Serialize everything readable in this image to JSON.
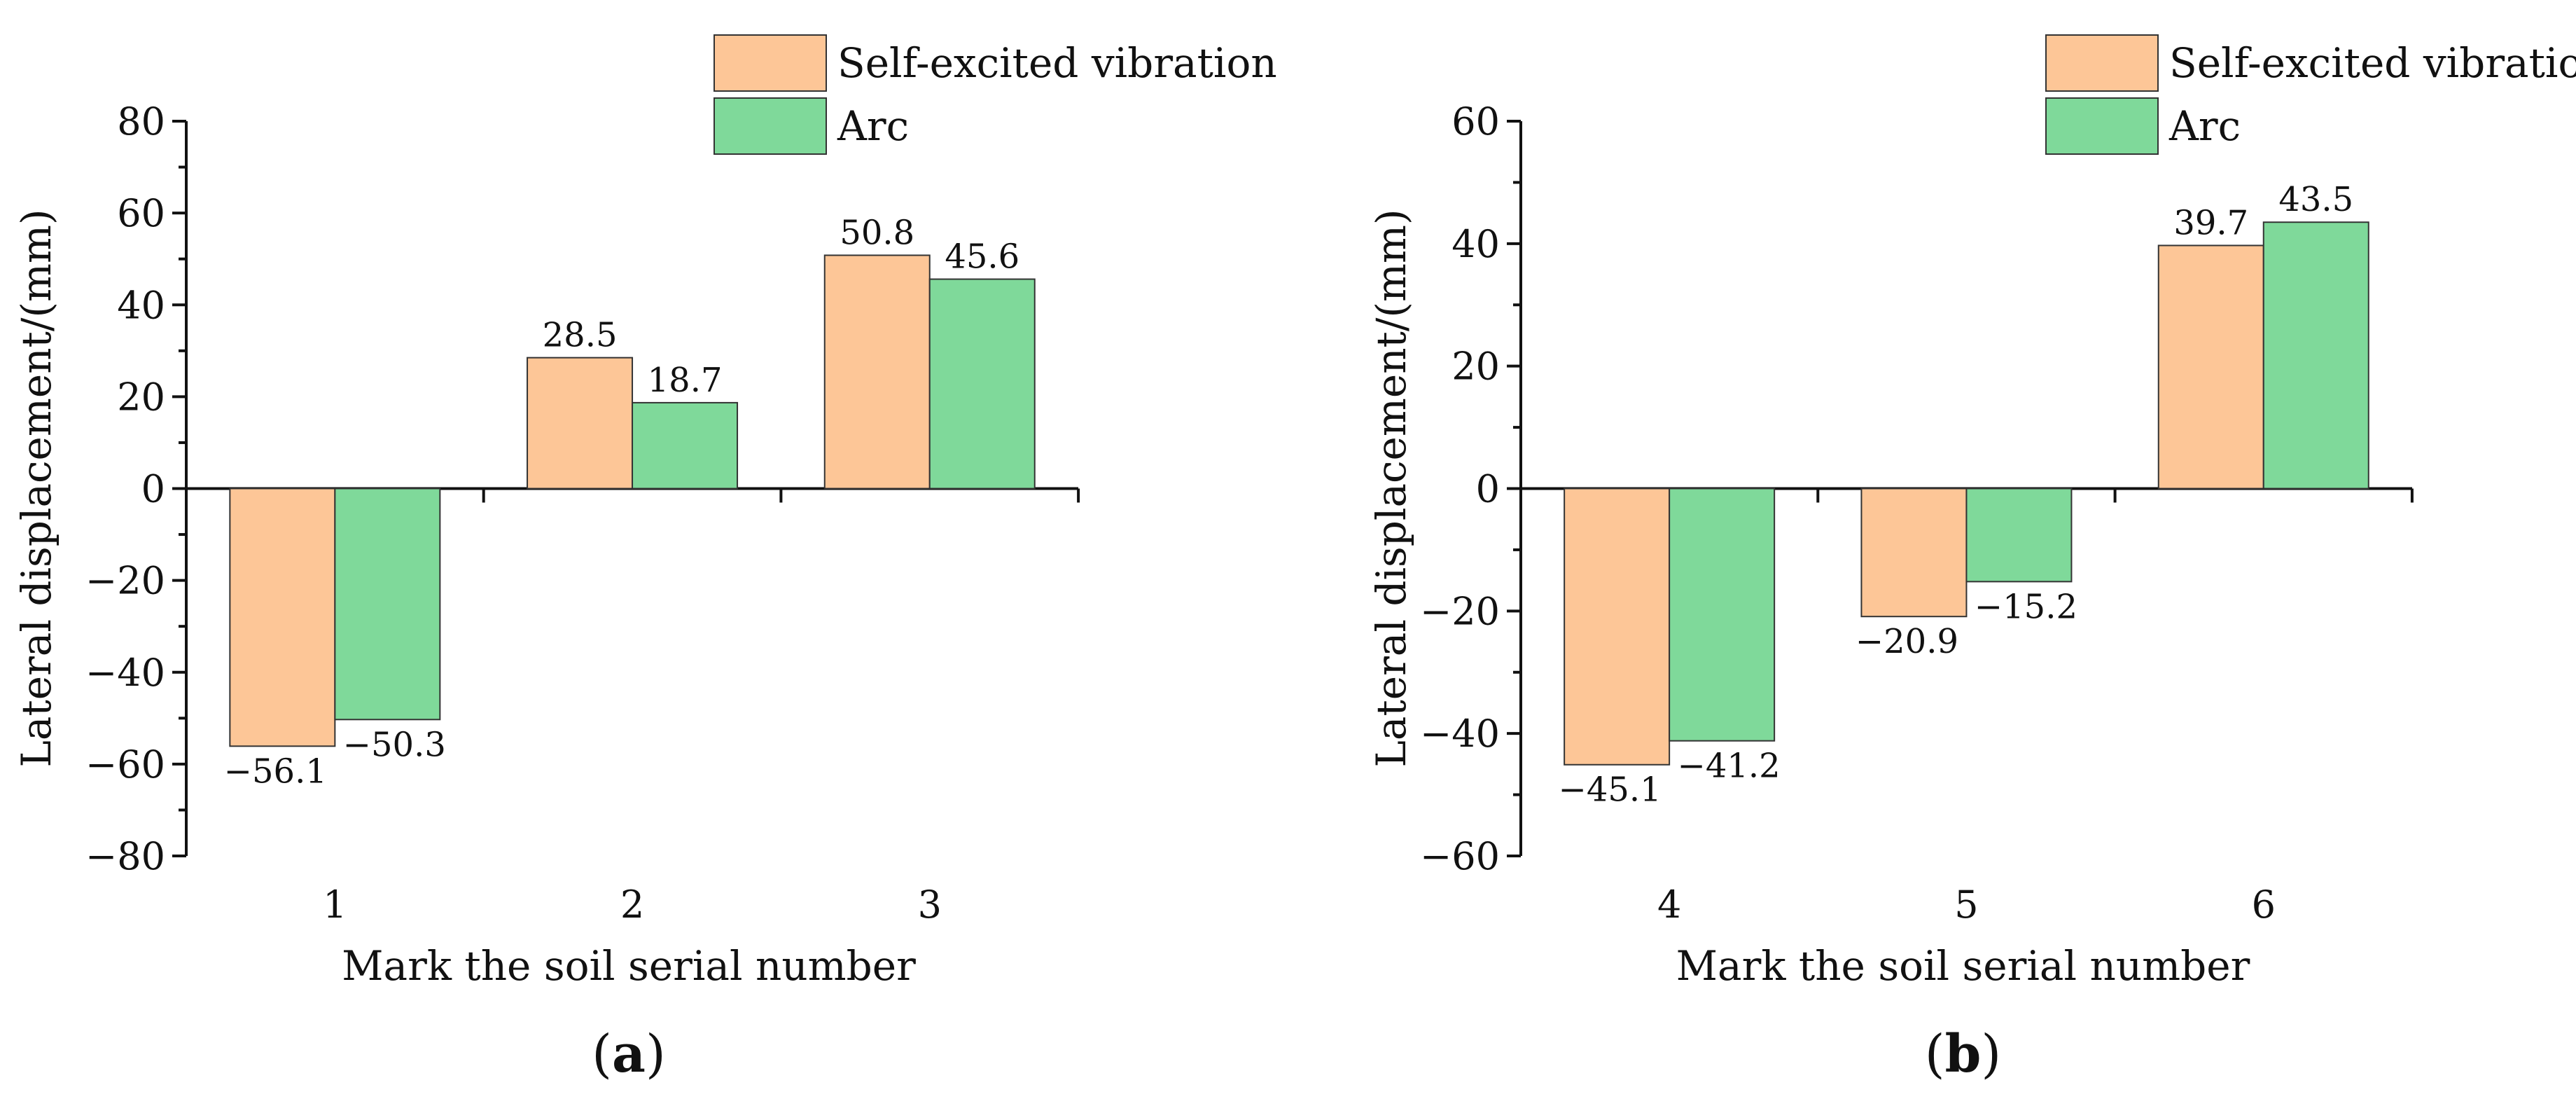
{
  "chart_data": [
    {
      "type": "bar",
      "panel_label": "a",
      "categories": [
        "1",
        "2",
        "3"
      ],
      "series": [
        {
          "name": "Self-excited vibration",
          "color": "#FDC697",
          "values": [
            -56.1,
            28.5,
            50.8
          ],
          "labels": [
            "−56.1",
            "28.5",
            "50.8"
          ]
        },
        {
          "name": "Arc",
          "color": "#7FD99A",
          "values": [
            -50.3,
            18.7,
            45.6
          ],
          "labels": [
            "−50.3",
            "18.7",
            "45.6"
          ]
        }
      ],
      "xlabel": "Mark the soil serial number",
      "ylabel": "Lateral displacement/(mm)",
      "ylim": [
        -80,
        80
      ],
      "yticks": [
        -80,
        -60,
        -40,
        -20,
        0,
        20,
        40,
        60,
        80
      ],
      "ytick_labels": [
        "−80",
        "−60",
        "−40",
        "−20",
        "0",
        "20",
        "40",
        "60",
        "80"
      ],
      "grid": false,
      "legend_position": "top-right"
    },
    {
      "type": "bar",
      "panel_label": "b",
      "categories": [
        "4",
        "5",
        "6"
      ],
      "series": [
        {
          "name": "Self-excited vibration",
          "color": "#FDC697",
          "values": [
            -45.1,
            -20.9,
            39.7
          ],
          "labels": [
            "−45.1",
            "−20.9",
            "39.7"
          ]
        },
        {
          "name": "Arc",
          "color": "#7FD99A",
          "values": [
            -41.2,
            -15.2,
            43.5
          ],
          "labels": [
            "−41.2",
            "−15.2",
            "43.5"
          ]
        }
      ],
      "xlabel": "Mark the soil serial number",
      "ylabel": "Lateral displacement/(mm)",
      "ylim": [
        -60,
        60
      ],
      "yticks": [
        -60,
        -40,
        -20,
        0,
        20,
        40,
        60
      ],
      "ytick_labels": [
        "−60",
        "−40",
        "−20",
        "0",
        "20",
        "40",
        "60"
      ],
      "grid": false,
      "legend_position": "top-right"
    }
  ]
}
